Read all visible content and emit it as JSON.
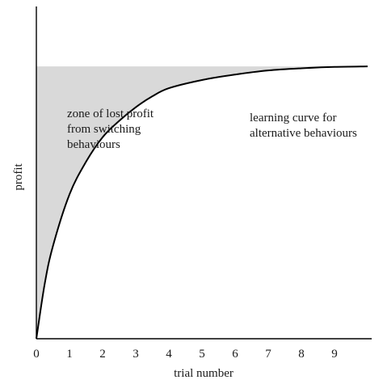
{
  "chart_data": {
    "type": "line",
    "title": "",
    "xlabel": "trial number",
    "ylabel": "profit",
    "xlim": [
      0,
      10
    ],
    "ylim": [
      0,
      1.22
    ],
    "x_ticks": [
      "0",
      "1",
      "2",
      "3",
      "4",
      "5",
      "6",
      "7",
      "8",
      "9"
    ],
    "grid": false,
    "legend": "none",
    "series": [
      {
        "x": [
          0,
          0.25,
          0.5,
          1,
          1.5,
          2,
          2.5,
          3,
          3.5,
          4,
          5,
          6,
          7,
          8,
          9,
          10
        ],
        "values": [
          0,
          0.2,
          0.34,
          0.53,
          0.65,
          0.74,
          0.8,
          0.85,
          0.89,
          0.92,
          0.95,
          0.97,
          0.985,
          0.993,
          0.998,
          1.0
        ]
      }
    ],
    "max_profit_level": 1.0,
    "shaded_region": "between max profit level and learning curve",
    "shade_color": "#d9d9d9",
    "curve_color": "#000000",
    "annotations": [
      {
        "lines": [
          "zone of lost profit",
          "from switching",
          "behaviours"
        ]
      },
      {
        "lines": [
          "learning curve for",
          "alternative behaviours"
        ]
      }
    ]
  }
}
